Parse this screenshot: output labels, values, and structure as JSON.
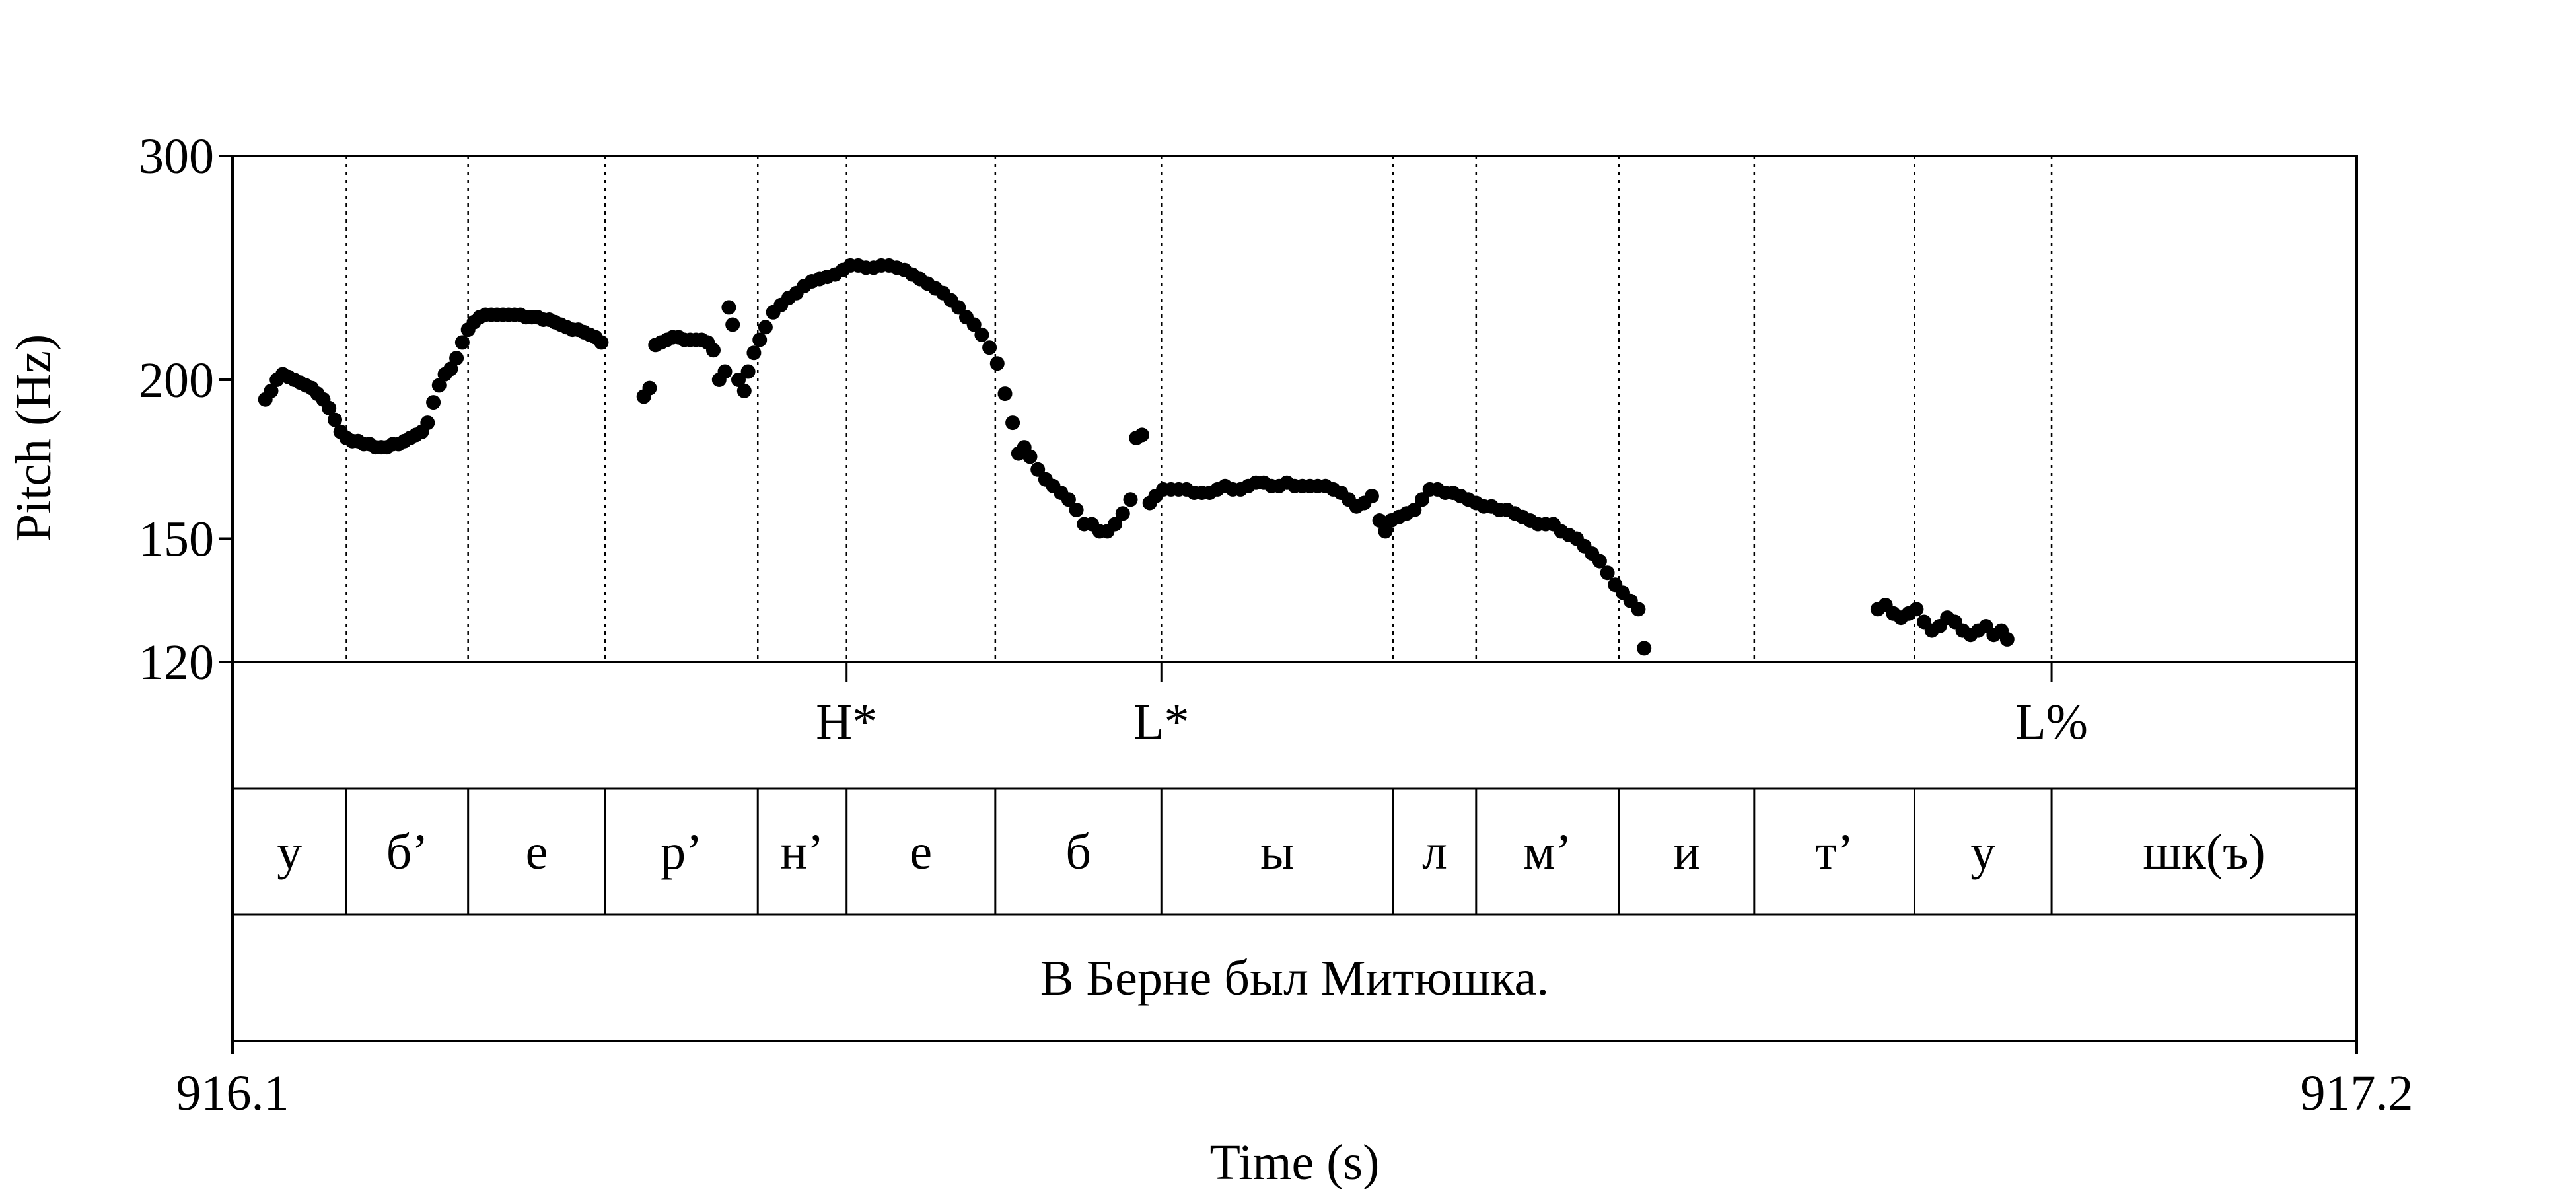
{
  "chart_data": {
    "type": "scatter",
    "title": "",
    "xlabel": "Time (s)",
    "ylabel": "Pitch (Hz)",
    "xlim": [
      916.1,
      917.2
    ],
    "ylim": [
      120,
      300
    ],
    "y_scale": "log",
    "x_tick_labels": [
      {
        "value": 916.1,
        "label": "916.1"
      },
      {
        "value": 917.2,
        "label": "917.2"
      }
    ],
    "y_tick_labels": [
      {
        "value": 120,
        "label": "120"
      },
      {
        "value": 150,
        "label": "150"
      },
      {
        "value": 200,
        "label": "200"
      },
      {
        "value": 300,
        "label": "300"
      }
    ],
    "grid": "dotted vertical lines at segment boundaries",
    "pitch_points": [
      [
        916.117,
        193
      ],
      [
        916.12,
        196
      ],
      [
        916.123,
        200
      ],
      [
        916.126,
        202
      ],
      [
        916.129,
        201
      ],
      [
        916.132,
        200
      ],
      [
        916.135,
        199
      ],
      [
        916.138,
        198
      ],
      [
        916.141,
        197
      ],
      [
        916.144,
        195
      ],
      [
        916.147,
        193
      ],
      [
        916.15,
        190
      ],
      [
        916.153,
        186
      ],
      [
        916.156,
        182
      ],
      [
        916.159,
        180
      ],
      [
        916.162,
        179
      ],
      [
        916.165,
        179
      ],
      [
        916.168,
        178
      ],
      [
        916.171,
        178
      ],
      [
        916.174,
        177
      ],
      [
        916.177,
        177
      ],
      [
        916.18,
        177
      ],
      [
        916.183,
        178
      ],
      [
        916.186,
        178
      ],
      [
        916.189,
        179
      ],
      [
        916.192,
        180
      ],
      [
        916.195,
        181
      ],
      [
        916.198,
        182
      ],
      [
        916.201,
        185
      ],
      [
        916.204,
        192
      ],
      [
        916.207,
        198
      ],
      [
        916.21,
        202
      ],
      [
        916.213,
        204
      ],
      [
        916.216,
        208
      ],
      [
        916.219,
        214
      ],
      [
        916.222,
        219
      ],
      [
        916.225,
        222
      ],
      [
        916.228,
        224
      ],
      [
        916.231,
        225
      ],
      [
        916.234,
        225
      ],
      [
        916.237,
        225
      ],
      [
        916.24,
        225
      ],
      [
        916.243,
        225
      ],
      [
        916.246,
        225
      ],
      [
        916.249,
        225
      ],
      [
        916.252,
        224
      ],
      [
        916.255,
        224
      ],
      [
        916.258,
        224
      ],
      [
        916.261,
        223
      ],
      [
        916.264,
        223
      ],
      [
        916.267,
        222
      ],
      [
        916.27,
        221
      ],
      [
        916.273,
        220
      ],
      [
        916.276,
        219
      ],
      [
        916.279,
        219
      ],
      [
        916.282,
        218
      ],
      [
        916.285,
        217
      ],
      [
        916.288,
        216
      ],
      [
        916.291,
        214
      ],
      [
        916.313,
        194
      ],
      [
        916.316,
        197
      ],
      [
        916.319,
        213
      ],
      [
        916.322,
        214
      ],
      [
        916.325,
        215
      ],
      [
        916.328,
        216
      ],
      [
        916.331,
        216
      ],
      [
        916.334,
        215
      ],
      [
        916.337,
        215
      ],
      [
        916.34,
        215
      ],
      [
        916.343,
        215
      ],
      [
        916.346,
        214
      ],
      [
        916.349,
        211
      ],
      [
        916.352,
        200
      ],
      [
        916.355,
        203
      ],
      [
        916.357,
        228
      ],
      [
        916.359,
        221
      ],
      [
        916.362,
        200
      ],
      [
        916.365,
        196
      ],
      [
        916.367,
        203
      ],
      [
        916.37,
        210
      ],
      [
        916.373,
        215
      ],
      [
        916.376,
        220
      ],
      [
        916.38,
        226
      ],
      [
        916.384,
        229
      ],
      [
        916.388,
        232
      ],
      [
        916.392,
        234
      ],
      [
        916.396,
        237
      ],
      [
        916.4,
        239
      ],
      [
        916.404,
        240
      ],
      [
        916.408,
        241
      ],
      [
        916.412,
        242
      ],
      [
        916.416,
        244
      ],
      [
        916.42,
        246
      ],
      [
        916.424,
        246
      ],
      [
        916.428,
        245
      ],
      [
        916.432,
        245
      ],
      [
        916.436,
        246
      ],
      [
        916.44,
        246
      ],
      [
        916.444,
        245
      ],
      [
        916.448,
        244
      ],
      [
        916.452,
        242
      ],
      [
        916.456,
        240
      ],
      [
        916.46,
        238
      ],
      [
        916.464,
        236
      ],
      [
        916.468,
        234
      ],
      [
        916.472,
        231
      ],
      [
        916.476,
        228
      ],
      [
        916.48,
        224
      ],
      [
        916.484,
        221
      ],
      [
        916.488,
        217
      ],
      [
        916.492,
        212
      ],
      [
        916.496,
        206
      ],
      [
        916.5,
        195
      ],
      [
        916.504,
        185
      ],
      [
        916.507,
        175
      ],
      [
        916.51,
        177
      ],
      [
        916.513,
        174
      ],
      [
        916.517,
        170
      ],
      [
        916.521,
        167
      ],
      [
        916.525,
        165
      ],
      [
        916.529,
        163
      ],
      [
        916.533,
        161
      ],
      [
        916.537,
        158
      ],
      [
        916.541,
        154
      ],
      [
        916.545,
        154
      ],
      [
        916.549,
        152
      ],
      [
        916.553,
        152
      ],
      [
        916.557,
        154
      ],
      [
        916.561,
        157
      ],
      [
        916.565,
        161
      ],
      [
        916.568,
        180
      ],
      [
        916.571,
        181
      ],
      [
        916.575,
        160
      ],
      [
        916.578,
        162
      ],
      [
        916.582,
        164
      ],
      [
        916.586,
        164
      ],
      [
        916.59,
        164
      ],
      [
        916.594,
        164
      ],
      [
        916.598,
        163
      ],
      [
        916.602,
        163
      ],
      [
        916.606,
        163
      ],
      [
        916.61,
        164
      ],
      [
        916.614,
        165
      ],
      [
        916.618,
        164
      ],
      [
        916.622,
        164
      ],
      [
        916.626,
        165
      ],
      [
        916.63,
        166
      ],
      [
        916.634,
        166
      ],
      [
        916.638,
        165
      ],
      [
        916.642,
        165
      ],
      [
        916.646,
        166
      ],
      [
        916.65,
        165
      ],
      [
        916.654,
        165
      ],
      [
        916.658,
        165
      ],
      [
        916.662,
        165
      ],
      [
        916.666,
        165
      ],
      [
        916.67,
        164
      ],
      [
        916.674,
        163
      ],
      [
        916.678,
        161
      ],
      [
        916.682,
        159
      ],
      [
        916.686,
        160
      ],
      [
        916.69,
        162
      ],
      [
        916.694,
        155
      ],
      [
        916.697,
        152
      ],
      [
        916.7,
        155
      ],
      [
        916.704,
        156
      ],
      [
        916.708,
        157
      ],
      [
        916.712,
        158
      ],
      [
        916.716,
        161
      ],
      [
        916.72,
        164
      ],
      [
        916.724,
        164
      ],
      [
        916.728,
        163
      ],
      [
        916.732,
        163
      ],
      [
        916.736,
        162
      ],
      [
        916.74,
        161
      ],
      [
        916.744,
        160
      ],
      [
        916.748,
        159
      ],
      [
        916.752,
        159
      ],
      [
        916.756,
        158
      ],
      [
        916.76,
        158
      ],
      [
        916.764,
        157
      ],
      [
        916.768,
        156
      ],
      [
        916.772,
        155
      ],
      [
        916.776,
        154
      ],
      [
        916.78,
        154
      ],
      [
        916.784,
        154
      ],
      [
        916.788,
        152
      ],
      [
        916.792,
        151
      ],
      [
        916.796,
        150
      ],
      [
        916.8,
        148
      ],
      [
        916.804,
        146
      ],
      [
        916.808,
        144
      ],
      [
        916.812,
        141
      ],
      [
        916.816,
        138
      ],
      [
        916.82,
        136
      ],
      [
        916.824,
        134
      ],
      [
        916.828,
        132
      ],
      [
        916.831,
        123
      ],
      [
        916.952,
        132
      ],
      [
        916.956,
        133
      ],
      [
        916.96,
        131
      ],
      [
        916.964,
        130
      ],
      [
        916.968,
        131
      ],
      [
        916.972,
        132
      ],
      [
        916.976,
        129
      ],
      [
        916.98,
        127
      ],
      [
        916.984,
        128
      ],
      [
        916.988,
        130
      ],
      [
        916.992,
        129
      ],
      [
        916.996,
        127
      ],
      [
        917.0,
        126
      ],
      [
        917.004,
        127
      ],
      [
        917.008,
        128
      ],
      [
        917.012,
        126
      ],
      [
        917.016,
        127
      ],
      [
        917.019,
        125
      ]
    ],
    "tiers": {
      "tones": [
        {
          "time": 916.418,
          "label": "H*"
        },
        {
          "time": 916.581,
          "label": "L*"
        },
        {
          "time": 917.042,
          "label": "L%"
        }
      ],
      "segments": [
        {
          "start": 916.1,
          "end": 916.159,
          "label": "у"
        },
        {
          "start": 916.159,
          "end": 916.222,
          "label": "б’"
        },
        {
          "start": 916.222,
          "end": 916.293,
          "label": "е"
        },
        {
          "start": 916.293,
          "end": 916.372,
          "label": "р’"
        },
        {
          "start": 916.372,
          "end": 916.418,
          "label": "н’"
        },
        {
          "start": 916.418,
          "end": 916.495,
          "label": "е"
        },
        {
          "start": 916.495,
          "end": 916.581,
          "label": "б"
        },
        {
          "start": 916.581,
          "end": 916.701,
          "label": "ы"
        },
        {
          "start": 916.701,
          "end": 916.744,
          "label": "л"
        },
        {
          "start": 916.744,
          "end": 916.818,
          "label": "м’"
        },
        {
          "start": 916.818,
          "end": 916.888,
          "label": "и"
        },
        {
          "start": 916.888,
          "end": 916.971,
          "label": "т’"
        },
        {
          "start": 916.971,
          "end": 917.042,
          "label": "у"
        },
        {
          "start": 917.042,
          "end": 917.2,
          "label": "шк(ъ)"
        }
      ],
      "sentence": "В Берне был Митюшка."
    }
  }
}
